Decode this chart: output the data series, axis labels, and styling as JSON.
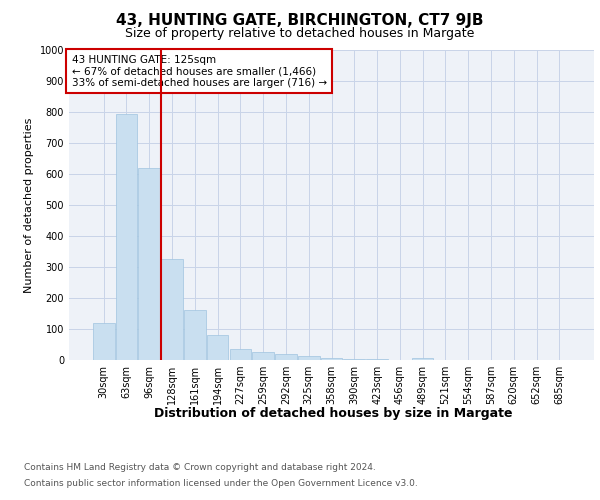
{
  "title": "43, HUNTING GATE, BIRCHINGTON, CT7 9JB",
  "subtitle": "Size of property relative to detached houses in Margate",
  "xlabel": "Distribution of detached houses by size in Margate",
  "ylabel": "Number of detached properties",
  "categories": [
    "30sqm",
    "63sqm",
    "96sqm",
    "128sqm",
    "161sqm",
    "194sqm",
    "227sqm",
    "259sqm",
    "292sqm",
    "325sqm",
    "358sqm",
    "390sqm",
    "423sqm",
    "456sqm",
    "489sqm",
    "521sqm",
    "554sqm",
    "587sqm",
    "620sqm",
    "652sqm",
    "685sqm"
  ],
  "values": [
    120,
    795,
    620,
    325,
    160,
    80,
    35,
    25,
    20,
    12,
    8,
    3,
    2,
    0,
    5,
    0,
    0,
    0,
    0,
    0,
    0
  ],
  "bar_color": "#c9dff0",
  "bar_edge_color": "#a0c4e0",
  "red_line_index": 3,
  "ylim": [
    0,
    1000
  ],
  "yticks": [
    0,
    100,
    200,
    300,
    400,
    500,
    600,
    700,
    800,
    900,
    1000
  ],
  "annotation_title": "43 HUNTING GATE: 125sqm",
  "annotation_line1": "← 67% of detached houses are smaller (1,466)",
  "annotation_line2": "33% of semi-detached houses are larger (716) →",
  "footer1": "Contains HM Land Registry data © Crown copyright and database right 2024.",
  "footer2": "Contains public sector information licensed under the Open Government Licence v3.0.",
  "bg_color": "#eef2f8",
  "grid_color": "#c8d4e8",
  "title_fontsize": 11,
  "subtitle_fontsize": 9,
  "ylabel_fontsize": 8,
  "xlabel_fontsize": 9,
  "tick_fontsize": 7,
  "annotation_fontsize": 7.5,
  "footer_fontsize": 6.5
}
